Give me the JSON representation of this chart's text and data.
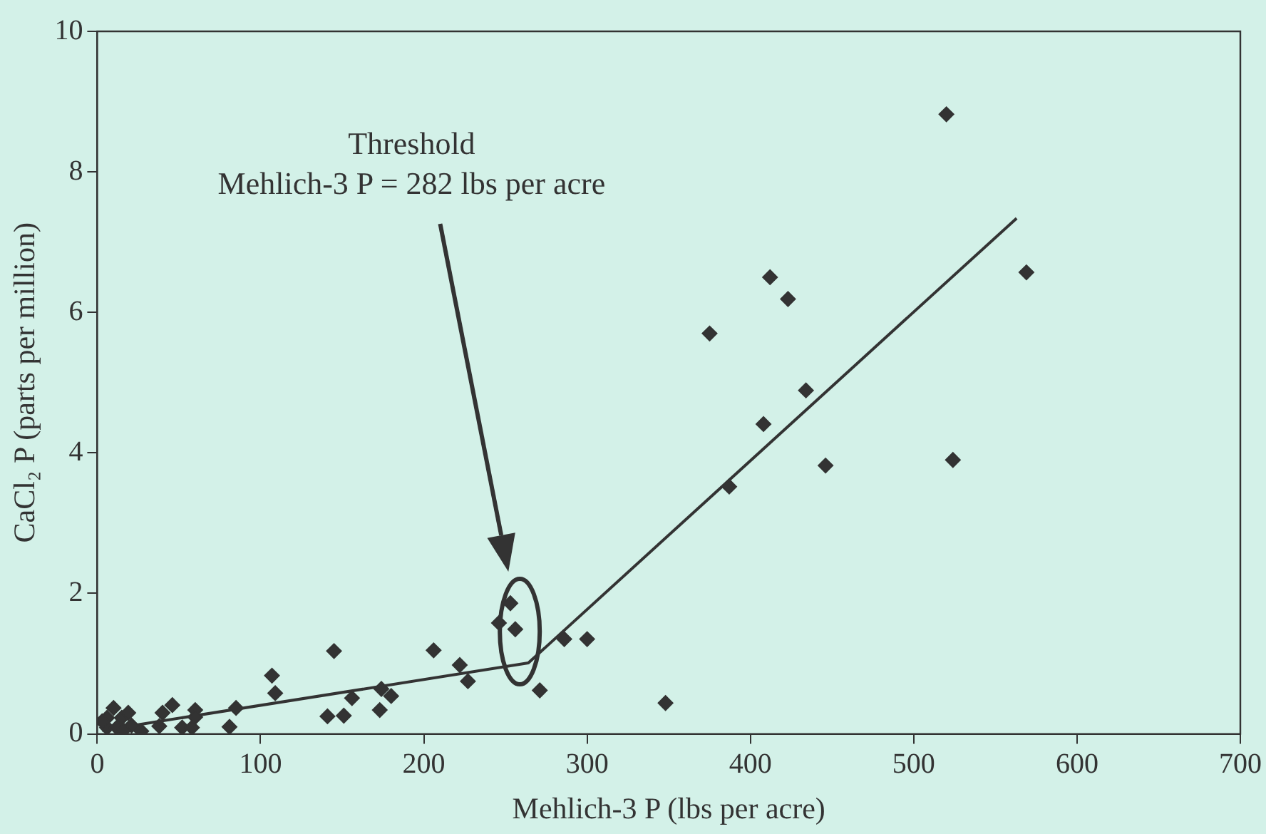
{
  "chart_data": {
    "type": "scatter",
    "xlabel": "Mehlich-3 P (lbs per acre)",
    "ylabel": "CaCl₂ P (parts per million)",
    "annotations": [
      "Threshold",
      "Mehlich-3 P = 282 lbs per acre"
    ],
    "xlim": [
      0,
      700
    ],
    "xticks": [
      0,
      100,
      200,
      300,
      400,
      500,
      600,
      700
    ],
    "ylim": [
      0,
      10
    ],
    "yticks": [
      0,
      2,
      4,
      6,
      8,
      10
    ],
    "grid": false,
    "legend": false,
    "marker": "diamond",
    "series": [
      {
        "color": "#333333",
        "x": [
          520,
          569,
          412,
          423,
          375,
          434,
          408,
          387,
          446,
          524,
          348,
          300,
          286,
          271,
          253,
          246,
          256,
          222,
          227,
          145,
          206,
          107,
          109,
          85,
          81,
          156,
          141,
          151,
          174,
          180,
          173,
          46,
          40,
          38,
          60,
          60,
          52,
          58,
          10,
          6,
          15,
          19,
          6,
          12,
          21,
          27,
          16,
          3
        ],
        "values": [
          8.82,
          6.57,
          6.5,
          6.19,
          5.7,
          4.89,
          4.41,
          3.52,
          3.82,
          3.9,
          0.44,
          1.35,
          1.35,
          0.62,
          1.86,
          1.58,
          1.49,
          0.98,
          0.75,
          1.18,
          1.19,
          0.83,
          0.58,
          0.37,
          0.1,
          0.51,
          0.25,
          0.26,
          0.64,
          0.54,
          0.34,
          0.41,
          0.3,
          0.11,
          0.34,
          0.24,
          0.09,
          0.09,
          0.37,
          0.23,
          0.23,
          0.3,
          0.09,
          0.09,
          0.12,
          0.04,
          0.05,
          0.18
        ]
      },
      {
        "type": "line",
        "color": "#333333",
        "marker": "none",
        "line_style": "solid",
        "x": [
          3,
          264,
          563
        ],
        "values": [
          0.05,
          1.01,
          7.34
        ]
      }
    ]
  }
}
